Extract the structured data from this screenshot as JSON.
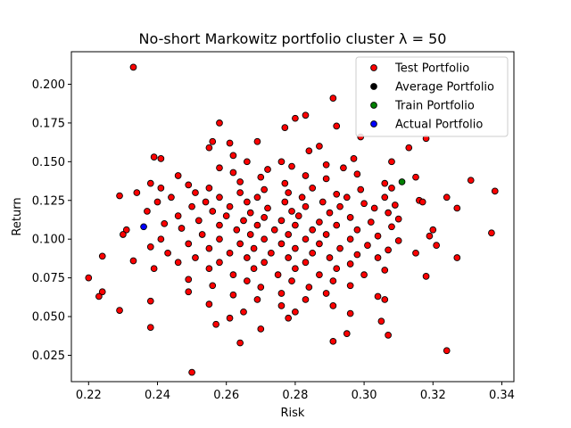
{
  "chart_data": {
    "type": "scatter",
    "title": "No-short Markowitz portfolio cluster λ = 50",
    "xlabel": "Risk",
    "ylabel": "Return",
    "xlim": [
      0.215,
      0.3435
    ],
    "ylim": [
      0.008,
      0.221
    ],
    "xticks": [
      "0.22",
      "0.24",
      "0.26",
      "0.28",
      "0.30",
      "0.32",
      "0.34"
    ],
    "yticks": [
      "0.025",
      "0.050",
      "0.075",
      "0.100",
      "0.125",
      "0.150",
      "0.175",
      "0.200"
    ],
    "legend_position": "top-right",
    "colors": {
      "test": "#ff0000",
      "average": "#000000",
      "train": "#008000",
      "actual": "#0000ff",
      "edge": "#000000"
    },
    "series": [
      {
        "name": "Test Portfolio",
        "color": "#ff0000",
        "points": [
          [
            0.233,
            0.211
          ],
          [
            0.291,
            0.191
          ],
          [
            0.258,
            0.175
          ],
          [
            0.283,
            0.18
          ],
          [
            0.28,
            0.178
          ],
          [
            0.292,
            0.173
          ],
          [
            0.277,
            0.172
          ],
          [
            0.318,
            0.165
          ],
          [
            0.299,
            0.166
          ],
          [
            0.256,
            0.163
          ],
          [
            0.261,
            0.162
          ],
          [
            0.269,
            0.163
          ],
          [
            0.313,
            0.159
          ],
          [
            0.287,
            0.16
          ],
          [
            0.255,
            0.159
          ],
          [
            0.239,
            0.153
          ],
          [
            0.241,
            0.152
          ],
          [
            0.262,
            0.154
          ],
          [
            0.284,
            0.157
          ],
          [
            0.297,
            0.152
          ],
          [
            0.276,
            0.15
          ],
          [
            0.308,
            0.15
          ],
          [
            0.266,
            0.15
          ],
          [
            0.279,
            0.147
          ],
          [
            0.289,
            0.148
          ],
          [
            0.272,
            0.145
          ],
          [
            0.294,
            0.146
          ],
          [
            0.258,
            0.146
          ],
          [
            0.262,
            0.143
          ],
          [
            0.246,
            0.141
          ],
          [
            0.283,
            0.141
          ],
          [
            0.298,
            0.142
          ],
          [
            0.315,
            0.14
          ],
          [
            0.27,
            0.14
          ],
          [
            0.289,
            0.139
          ],
          [
            0.264,
            0.137
          ],
          [
            0.238,
            0.136
          ],
          [
            0.249,
            0.135
          ],
          [
            0.277,
            0.136
          ],
          [
            0.306,
            0.136
          ],
          [
            0.331,
            0.138
          ],
          [
            0.241,
            0.133
          ],
          [
            0.255,
            0.133
          ],
          [
            0.271,
            0.132
          ],
          [
            0.285,
            0.133
          ],
          [
            0.299,
            0.132
          ],
          [
            0.308,
            0.133
          ],
          [
            0.234,
            0.13
          ],
          [
            0.251,
            0.13
          ],
          [
            0.264,
            0.13
          ],
          [
            0.278,
            0.13
          ],
          [
            0.292,
            0.129
          ],
          [
            0.316,
            0.125
          ],
          [
            0.338,
            0.131
          ],
          [
            0.229,
            0.128
          ],
          [
            0.244,
            0.127
          ],
          [
            0.258,
            0.127
          ],
          [
            0.269,
            0.127
          ],
          [
            0.282,
            0.127
          ],
          [
            0.295,
            0.127
          ],
          [
            0.306,
            0.127
          ],
          [
            0.324,
            0.127
          ],
          [
            0.24,
            0.124
          ],
          [
            0.254,
            0.124
          ],
          [
            0.266,
            0.124
          ],
          [
            0.277,
            0.124
          ],
          [
            0.288,
            0.124
          ],
          [
            0.3,
            0.123
          ],
          [
            0.309,
            0.122
          ],
          [
            0.317,
            0.124
          ],
          [
            0.25,
            0.121
          ],
          [
            0.261,
            0.121
          ],
          [
            0.272,
            0.12
          ],
          [
            0.283,
            0.121
          ],
          [
            0.293,
            0.121
          ],
          [
            0.303,
            0.12
          ],
          [
            0.327,
            0.12
          ],
          [
            0.237,
            0.118
          ],
          [
            0.256,
            0.118
          ],
          [
            0.267,
            0.117
          ],
          [
            0.279,
            0.118
          ],
          [
            0.29,
            0.117
          ],
          [
            0.307,
            0.117
          ],
          [
            0.246,
            0.115
          ],
          [
            0.26,
            0.115
          ],
          [
            0.271,
            0.114
          ],
          [
            0.281,
            0.115
          ],
          [
            0.296,
            0.114
          ],
          [
            0.31,
            0.113
          ],
          [
            0.252,
            0.112
          ],
          [
            0.265,
            0.112
          ],
          [
            0.276,
            0.112
          ],
          [
            0.287,
            0.111
          ],
          [
            0.302,
            0.111
          ],
          [
            0.242,
            0.11
          ],
          [
            0.258,
            0.109
          ],
          [
            0.269,
            0.109
          ],
          [
            0.28,
            0.109
          ],
          [
            0.292,
            0.109
          ],
          [
            0.308,
            0.108
          ],
          [
            0.231,
            0.106
          ],
          [
            0.247,
            0.107
          ],
          [
            0.263,
            0.106
          ],
          [
            0.274,
            0.106
          ],
          [
            0.285,
            0.106
          ],
          [
            0.298,
            0.106
          ],
          [
            0.32,
            0.106
          ],
          [
            0.337,
            0.104
          ],
          [
            0.23,
            0.103
          ],
          [
            0.253,
            0.103
          ],
          [
            0.267,
            0.103
          ],
          [
            0.278,
            0.103
          ],
          [
            0.289,
            0.103
          ],
          [
            0.304,
            0.102
          ],
          [
            0.319,
            0.102
          ],
          [
            0.241,
            0.1
          ],
          [
            0.258,
            0.1
          ],
          [
            0.271,
            0.1
          ],
          [
            0.283,
            0.1
          ],
          [
            0.296,
            0.1
          ],
          [
            0.31,
            0.099
          ],
          [
            0.249,
            0.097
          ],
          [
            0.264,
            0.097
          ],
          [
            0.276,
            0.097
          ],
          [
            0.287,
            0.097
          ],
          [
            0.301,
            0.096
          ],
          [
            0.321,
            0.096
          ],
          [
            0.238,
            0.095
          ],
          [
            0.255,
            0.094
          ],
          [
            0.268,
            0.094
          ],
          [
            0.28,
            0.094
          ],
          [
            0.293,
            0.094
          ],
          [
            0.307,
            0.093
          ],
          [
            0.243,
            0.091
          ],
          [
            0.261,
            0.091
          ],
          [
            0.273,
            0.091
          ],
          [
            0.285,
            0.091
          ],
          [
            0.298,
            0.09
          ],
          [
            0.315,
            0.091
          ],
          [
            0.224,
            0.089
          ],
          [
            0.251,
            0.088
          ],
          [
            0.266,
            0.088
          ],
          [
            0.278,
            0.088
          ],
          [
            0.29,
            0.088
          ],
          [
            0.304,
            0.088
          ],
          [
            0.327,
            0.088
          ],
          [
            0.233,
            0.086
          ],
          [
            0.246,
            0.085
          ],
          [
            0.258,
            0.085
          ],
          [
            0.271,
            0.085
          ],
          [
            0.283,
            0.085
          ],
          [
            0.296,
            0.084
          ],
          [
            0.239,
            0.081
          ],
          [
            0.255,
            0.081
          ],
          [
            0.268,
            0.081
          ],
          [
            0.28,
            0.081
          ],
          [
            0.292,
            0.081
          ],
          [
            0.306,
            0.08
          ],
          [
            0.22,
            0.075
          ],
          [
            0.318,
            0.076
          ],
          [
            0.262,
            0.077
          ],
          [
            0.275,
            0.077
          ],
          [
            0.287,
            0.077
          ],
          [
            0.3,
            0.077
          ],
          [
            0.249,
            0.074
          ],
          [
            0.266,
            0.073
          ],
          [
            0.279,
            0.073
          ],
          [
            0.291,
            0.073
          ],
          [
            0.256,
            0.07
          ],
          [
            0.27,
            0.069
          ],
          [
            0.284,
            0.069
          ],
          [
            0.296,
            0.07
          ],
          [
            0.249,
            0.066
          ],
          [
            0.224,
            0.066
          ],
          [
            0.262,
            0.064
          ],
          [
            0.276,
            0.065
          ],
          [
            0.289,
            0.065
          ],
          [
            0.304,
            0.063
          ],
          [
            0.223,
            0.063
          ],
          [
            0.238,
            0.06
          ],
          [
            0.269,
            0.061
          ],
          [
            0.283,
            0.061
          ],
          [
            0.306,
            0.061
          ],
          [
            0.255,
            0.058
          ],
          [
            0.276,
            0.057
          ],
          [
            0.291,
            0.057
          ],
          [
            0.229,
            0.054
          ],
          [
            0.265,
            0.053
          ],
          [
            0.28,
            0.053
          ],
          [
            0.296,
            0.052
          ],
          [
            0.261,
            0.049
          ],
          [
            0.278,
            0.049
          ],
          [
            0.305,
            0.047
          ],
          [
            0.257,
            0.045
          ],
          [
            0.238,
            0.043
          ],
          [
            0.27,
            0.042
          ],
          [
            0.295,
            0.039
          ],
          [
            0.307,
            0.038
          ],
          [
            0.291,
            0.034
          ],
          [
            0.264,
            0.033
          ],
          [
            0.324,
            0.028
          ],
          [
            0.25,
            0.014
          ]
        ]
      },
      {
        "name": "Average Portfolio",
        "color": "#000000",
        "points": []
      },
      {
        "name": "Train Portfolio",
        "color": "#008000",
        "points": [
          [
            0.311,
            0.137
          ]
        ]
      },
      {
        "name": "Actual Portfolio",
        "color": "#0000ff",
        "points": [
          [
            0.236,
            0.108
          ]
        ]
      }
    ]
  }
}
